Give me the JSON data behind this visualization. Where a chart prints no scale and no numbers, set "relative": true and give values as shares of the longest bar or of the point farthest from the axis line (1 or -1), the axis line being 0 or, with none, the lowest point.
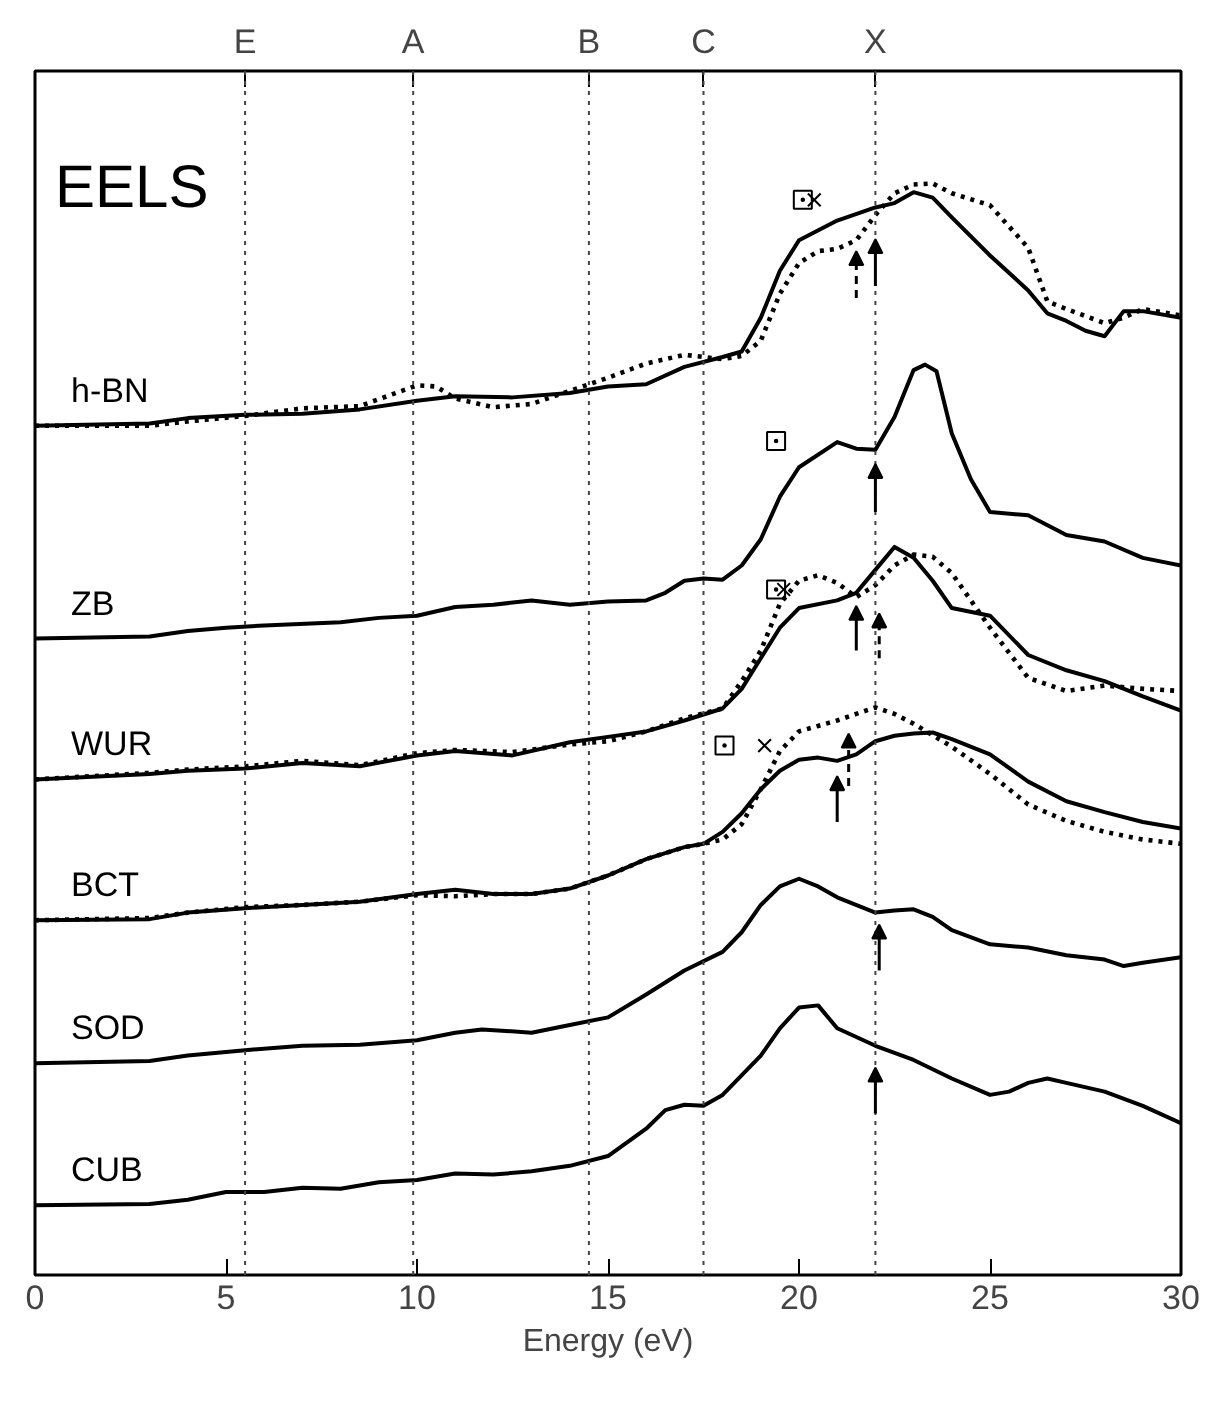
{
  "chart_data": {
    "type": "line",
    "title": "EELS",
    "xlabel": "Energy (eV)",
    "relative": true,
    "xlim": [
      0,
      30
    ],
    "xticks": [
      0,
      5,
      10,
      15,
      20,
      25,
      30
    ],
    "grid": false,
    "ref_lines": [
      {
        "axis": "x",
        "value": 5.5,
        "label": "E",
        "line_style": "dotted"
      },
      {
        "axis": "x",
        "value": 9.9,
        "label": "A",
        "line_style": "dotted"
      },
      {
        "axis": "x",
        "value": 14.5,
        "label": "B",
        "line_style": "dotted"
      },
      {
        "axis": "x",
        "value": 17.5,
        "label": "C",
        "line_style": "dotted"
      },
      {
        "axis": "x",
        "value": 22.0,
        "label": "X",
        "line_style": "dotted"
      }
    ],
    "series": [
      {
        "name": "h-BN",
        "color": "#000000",
        "line_style": "solid",
        "x": [
          0,
          3,
          4,
          5.5,
          7,
          8.5,
          10,
          11,
          12.5,
          14,
          15,
          16,
          17,
          18,
          18.5,
          19,
          19.5,
          20,
          21,
          22,
          22.5,
          23,
          23.5,
          24,
          25,
          26,
          26.5,
          27,
          27.5,
          28,
          28.5,
          29,
          30
        ],
        "values": [
          0.778,
          0.78,
          0.785,
          0.788,
          0.789,
          0.793,
          0.801,
          0.805,
          0.804,
          0.808,
          0.814,
          0.816,
          0.832,
          0.841,
          0.846,
          0.877,
          0.92,
          0.948,
          0.966,
          0.978,
          0.982,
          0.992,
          0.987,
          0.969,
          0.934,
          0.902,
          0.881,
          0.874,
          0.865,
          0.86,
          0.883,
          0.883,
          0.877
        ]
      },
      {
        "color": "#000000",
        "line_style": "dotted",
        "x": [
          0,
          3,
          4,
          5.5,
          7,
          8.5,
          10,
          10.5,
          11,
          12,
          13,
          14,
          15,
          16,
          17,
          18,
          18.5,
          19,
          19.5,
          20,
          20.5,
          21,
          21.5,
          22,
          22.5,
          23,
          23.5,
          24,
          25,
          26,
          26.5,
          27,
          28,
          28.5,
          29,
          30
        ],
        "values": [
          0.778,
          0.778,
          0.782,
          0.787,
          0.794,
          0.796,
          0.815,
          0.814,
          0.803,
          0.795,
          0.798,
          0.81,
          0.822,
          0.835,
          0.843,
          0.839,
          0.842,
          0.856,
          0.899,
          0.927,
          0.938,
          0.94,
          0.948,
          0.971,
          0.991,
          0.999,
          1.0,
          0.991,
          0.98,
          0.941,
          0.892,
          0.885,
          0.872,
          0.877,
          0.885,
          0.879
        ]
      },
      {
        "name": "ZB",
        "color": "#000000",
        "line_style": "solid",
        "x": [
          0,
          3,
          4,
          5,
          6,
          8,
          9,
          10,
          11,
          12,
          13,
          14,
          15,
          16,
          16.5,
          17,
          17.5,
          18,
          18.5,
          19,
          19.5,
          20,
          21,
          21.5,
          22,
          22.5,
          23,
          23.3,
          23.6,
          24,
          24.5,
          25,
          26,
          27,
          28,
          29,
          30
        ],
        "values": [
          0.583,
          0.585,
          0.59,
          0.593,
          0.595,
          0.598,
          0.602,
          0.604,
          0.612,
          0.614,
          0.618,
          0.614,
          0.617,
          0.618,
          0.625,
          0.636,
          0.638,
          0.637,
          0.65,
          0.674,
          0.713,
          0.74,
          0.763,
          0.757,
          0.756,
          0.786,
          0.829,
          0.834,
          0.828,
          0.771,
          0.729,
          0.699,
          0.696,
          0.678,
          0.672,
          0.657,
          0.65
        ]
      },
      {
        "name": "WUR",
        "color": "#000000",
        "line_style": "solid",
        "x": [
          0,
          3,
          4,
          5.5,
          7,
          8.5,
          10,
          11,
          12.5,
          14,
          15,
          16,
          17,
          18,
          18.5,
          19,
          19.5,
          20,
          21,
          21.5,
          22,
          22.5,
          23,
          23.5,
          24,
          25,
          26,
          27,
          28,
          29,
          30
        ],
        "values": [
          0.454,
          0.459,
          0.462,
          0.464,
          0.469,
          0.466,
          0.476,
          0.48,
          0.476,
          0.488,
          0.493,
          0.498,
          0.508,
          0.519,
          0.537,
          0.565,
          0.593,
          0.611,
          0.618,
          0.625,
          0.646,
          0.667,
          0.657,
          0.636,
          0.611,
          0.604,
          0.568,
          0.554,
          0.544,
          0.53,
          0.517
        ]
      },
      {
        "color": "#000000",
        "line_style": "dotted",
        "x": [
          0,
          3,
          4,
          5.5,
          7,
          8.5,
          10,
          11,
          12.5,
          14,
          15,
          16,
          17,
          18,
          18.5,
          19,
          19.5,
          20,
          20.5,
          21,
          21.5,
          22,
          22.5,
          23,
          23.5,
          24,
          25,
          26,
          27,
          28,
          29,
          30
        ],
        "values": [
          0.454,
          0.46,
          0.463,
          0.466,
          0.471,
          0.467,
          0.478,
          0.481,
          0.479,
          0.486,
          0.489,
          0.498,
          0.51,
          0.519,
          0.544,
          0.572,
          0.615,
          0.636,
          0.641,
          0.634,
          0.621,
          0.632,
          0.65,
          0.66,
          0.658,
          0.643,
          0.593,
          0.547,
          0.535,
          0.54,
          0.537,
          0.535
        ]
      },
      {
        "name": "BCT",
        "color": "#000000",
        "line_style": "solid",
        "x": [
          0,
          3,
          4,
          5.5,
          7,
          8.5,
          10,
          11,
          12,
          13,
          14,
          15,
          16,
          17,
          17.5,
          18,
          18.5,
          19,
          19.5,
          20,
          20.5,
          21,
          21.5,
          22,
          22.5,
          23,
          23.5,
          24,
          25,
          26,
          27,
          28,
          29,
          30
        ],
        "values": [
          0.325,
          0.326,
          0.332,
          0.336,
          0.339,
          0.342,
          0.349,
          0.353,
          0.349,
          0.349,
          0.354,
          0.366,
          0.381,
          0.392,
          0.395,
          0.406,
          0.423,
          0.445,
          0.462,
          0.472,
          0.474,
          0.471,
          0.477,
          0.489,
          0.494,
          0.496,
          0.497,
          0.491,
          0.477,
          0.452,
          0.434,
          0.424,
          0.415,
          0.409
        ]
      },
      {
        "color": "#000000",
        "line_style": "dotted",
        "x": [
          0,
          3,
          4,
          5.5,
          7,
          8.5,
          10,
          11,
          12,
          13,
          14,
          15,
          16,
          17,
          17.5,
          18,
          18.5,
          19,
          19.5,
          20,
          20.5,
          21,
          21.5,
          22,
          22.5,
          23,
          24,
          25,
          26,
          27,
          28,
          29,
          30
        ],
        "values": [
          0.325,
          0.327,
          0.332,
          0.337,
          0.339,
          0.342,
          0.348,
          0.347,
          0.349,
          0.349,
          0.354,
          0.366,
          0.381,
          0.392,
          0.395,
          0.399,
          0.413,
          0.445,
          0.48,
          0.498,
          0.503,
          0.508,
          0.514,
          0.52,
          0.514,
          0.505,
          0.484,
          0.459,
          0.431,
          0.416,
          0.406,
          0.399,
          0.395
        ]
      },
      {
        "name": "SOD",
        "color": "#000000",
        "line_style": "solid",
        "x": [
          0,
          3,
          4,
          5.5,
          7,
          8.5,
          10,
          11,
          11.7,
          13,
          14,
          15,
          16,
          17,
          18,
          18.5,
          19,
          19.5,
          20,
          20.5,
          21,
          22,
          22.5,
          23,
          23.5,
          24,
          25,
          26,
          27,
          28,
          28.5,
          29,
          30
        ],
        "values": [
          0.194,
          0.196,
          0.201,
          0.206,
          0.21,
          0.211,
          0.215,
          0.222,
          0.225,
          0.222,
          0.229,
          0.236,
          0.257,
          0.279,
          0.296,
          0.314,
          0.339,
          0.356,
          0.363,
          0.356,
          0.346,
          0.332,
          0.334,
          0.335,
          0.328,
          0.316,
          0.303,
          0.3,
          0.293,
          0.289,
          0.283,
          0.286,
          0.291
        ]
      },
      {
        "name": "CUB",
        "color": "#000000",
        "line_style": "solid",
        "x": [
          0,
          3,
          4,
          5,
          6,
          7,
          8,
          9,
          10,
          11,
          12,
          13,
          14,
          15,
          16,
          16.5,
          17,
          17.5,
          18,
          19,
          19.5,
          20,
          20.5,
          21,
          22,
          23,
          24,
          25,
          25.5,
          26,
          26.5,
          27,
          28,
          29,
          30
        ],
        "values": [
          0.064,
          0.065,
          0.069,
          0.076,
          0.076,
          0.08,
          0.079,
          0.085,
          0.087,
          0.093,
          0.092,
          0.095,
          0.1,
          0.109,
          0.134,
          0.151,
          0.156,
          0.155,
          0.165,
          0.201,
          0.226,
          0.245,
          0.247,
          0.226,
          0.21,
          0.197,
          0.18,
          0.165,
          0.168,
          0.176,
          0.18,
          0.176,
          0.168,
          0.155,
          0.139
        ]
      },
      {
        "type": "scatter",
        "marker": "square",
        "color": "#000000",
        "x": [
          20.1,
          19.4,
          19.4,
          18.05
        ],
        "values": [
          0.985,
          0.764,
          0.628,
          0.485
        ]
      },
      {
        "type": "scatter",
        "marker": "cross",
        "color": "#000000",
        "x": [
          20.4,
          19.6,
          19.1
        ],
        "values": [
          0.985,
          0.628,
          0.485
        ]
      }
    ]
  }
}
